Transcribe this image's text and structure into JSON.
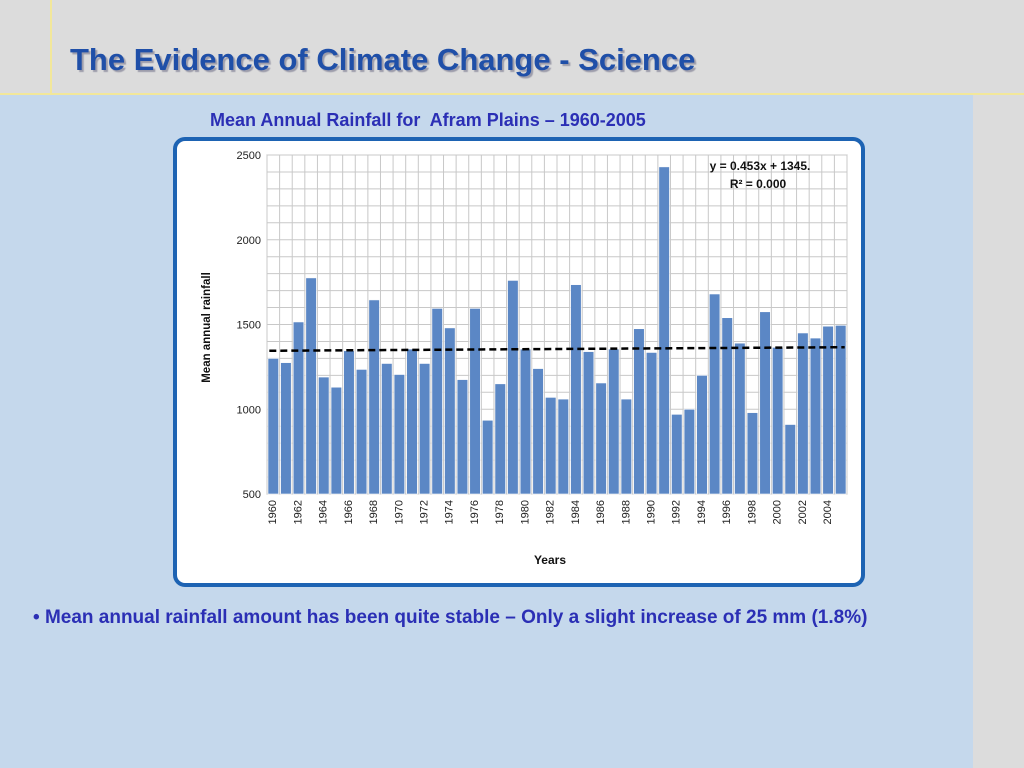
{
  "slide": {
    "title": "The Evidence of Climate Change - Science",
    "chart_caption": "Mean Annual Rainfall for  Afram Plains – 1960-2005",
    "bullet_marker": "•",
    "bullet_text": "Mean annual rainfall amount has been quite stable – Only a slight increase of 25 mm (1.8%)"
  },
  "colors": {
    "background": "#c5d8ec",
    "title": "#1f4fa8",
    "text": "#2b2fb5",
    "bar": "#5b87c5",
    "frame_border": "#1d63b3"
  },
  "chart_data": {
    "type": "bar",
    "xlabel": "Years",
    "ylabel": "Mean annual rainfall",
    "ylim": [
      500,
      2500
    ],
    "yticks": [
      500,
      1000,
      1500,
      2000,
      2500
    ],
    "grid": true,
    "categories": [
      "1960",
      "1961",
      "1962",
      "1963",
      "1964",
      "1965",
      "1966",
      "1967",
      "1968",
      "1969",
      "1970",
      "1971",
      "1972",
      "1973",
      "1974",
      "1975",
      "1976",
      "1977",
      "1978",
      "1979",
      "1980",
      "1981",
      "1982",
      "1983",
      "1984",
      "1985",
      "1986",
      "1987",
      "1988",
      "1989",
      "1990",
      "1991",
      "1992",
      "1993",
      "1994",
      "1995",
      "1996",
      "1997",
      "1998",
      "1999",
      "2000",
      "2001",
      "2002",
      "2003",
      "2004",
      "2005"
    ],
    "x_tick_labels": [
      "1960",
      "1962",
      "1964",
      "1966",
      "1968",
      "1970",
      "1972",
      "1974",
      "1976",
      "1978",
      "1980",
      "1982",
      "1984",
      "1986",
      "1988",
      "1990",
      "1992",
      "1994",
      "1996",
      "1998",
      "2000",
      "2002",
      "2004"
    ],
    "values": [
      1300,
      1275,
      1515,
      1775,
      1190,
      1130,
      1345,
      1235,
      1645,
      1270,
      1205,
      1355,
      1270,
      1595,
      1480,
      1175,
      1595,
      935,
      1150,
      1760,
      1355,
      1240,
      1070,
      1060,
      1735,
      1340,
      1155,
      1355,
      1060,
      1475,
      1335,
      2430,
      970,
      1000,
      1200,
      1680,
      1540,
      1390,
      980,
      1575,
      1365,
      910,
      1450,
      1420,
      1490,
      1495
    ],
    "trendline": {
      "style": "dashed",
      "color": "#000000",
      "start": [
        1960,
        1345
      ],
      "end": [
        2005,
        1366
      ]
    },
    "annotation": {
      "equation": "y = 0.453x + 1345.",
      "r_squared": "R² = 0.000"
    }
  }
}
